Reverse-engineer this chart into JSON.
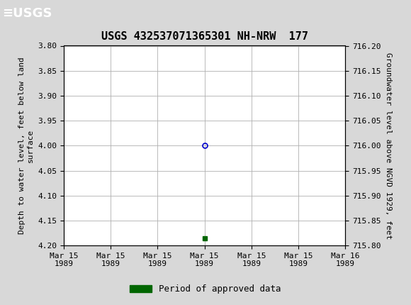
{
  "title": "USGS 432537071365301 NH-NRW  177",
  "ylabel_left": "Depth to water level, feet below land\nsurface",
  "ylabel_right": "Groundwater level above NGVD 1929, feet",
  "ylim_left": [
    3.8,
    4.2
  ],
  "ylim_right": [
    715.8,
    716.2
  ],
  "yticks_left": [
    3.8,
    3.85,
    3.9,
    3.95,
    4.0,
    4.05,
    4.1,
    4.15,
    4.2
  ],
  "yticks_right": [
    715.8,
    715.85,
    715.9,
    715.95,
    716.0,
    716.05,
    716.1,
    716.15,
    716.2
  ],
  "xlim": [
    0,
    6
  ],
  "xtick_positions": [
    0,
    1,
    2,
    3,
    4,
    5,
    6
  ],
  "xtick_labels": [
    "Mar 15\n1989",
    "Mar 15\n1989",
    "Mar 15\n1989",
    "Mar 15\n1989",
    "Mar 15\n1989",
    "Mar 15\n1989",
    "Mar 16\n1989"
  ],
  "data_point_x": 3.0,
  "data_point_y": 4.0,
  "green_marker_x": 3.0,
  "green_marker_y": 4.185,
  "header_color": "#1b6b3a",
  "background_color": "#d8d8d8",
  "plot_bg_color": "#ffffff",
  "grid_color": "#b0b0b0",
  "legend_label": "Period of approved data",
  "legend_color": "#006600",
  "data_point_color": "#0000cc",
  "font_name": "DejaVu Sans Mono",
  "title_fontsize": 11,
  "tick_fontsize": 8,
  "ylabel_fontsize": 8
}
